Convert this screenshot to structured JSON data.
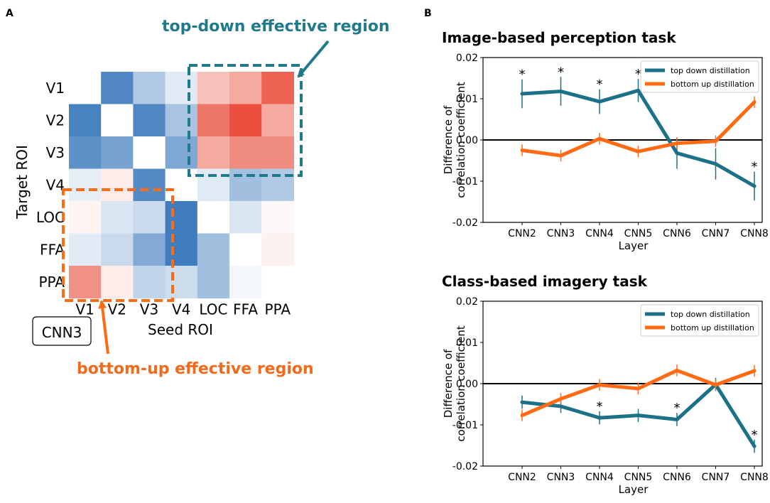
{
  "panel_labels": {
    "a": "A",
    "b": "B"
  },
  "colors": {
    "teal": "#1f7a8c",
    "teal_line": "#1b7187",
    "orange": "#ff6a13",
    "orange_text": "#f26a1b",
    "blue_strong": "#2f72b8",
    "red_strong": "#e8412c"
  },
  "chart_data": [
    {
      "type": "heatmap",
      "id": "matrix",
      "badge": "CNN3",
      "xlabel": "Seed ROI",
      "ylabel": "Target ROI",
      "rows": [
        "V1",
        "V2",
        "V3",
        "V4",
        "LOC",
        "FFA",
        "PPA"
      ],
      "cols": [
        "V1",
        "V2",
        "V3",
        "V4",
        "LOC",
        "FFA",
        "PPA"
      ],
      "values": [
        [
          0,
          -0.85,
          -0.38,
          -0.15,
          0.32,
          0.45,
          0.82
        ],
        [
          -0.88,
          0,
          -0.85,
          -0.42,
          0.72,
          0.92,
          0.45
        ],
        [
          -0.78,
          -0.65,
          0,
          -0.62,
          0.45,
          0.6,
          0.6
        ],
        [
          -0.12,
          0.1,
          -0.82,
          0,
          -0.15,
          -0.45,
          -0.38
        ],
        [
          0.06,
          -0.18,
          -0.26,
          -0.92,
          0,
          -0.18,
          0.04
        ],
        [
          -0.14,
          -0.26,
          -0.6,
          -0.92,
          -0.45,
          0,
          0.07
        ],
        [
          0.58,
          0.1,
          -0.3,
          -0.24,
          -0.45,
          -0.06,
          0
        ]
      ],
      "annotations": {
        "top_down": "top-down effective region",
        "bottom_up": "bottom-up effective region"
      }
    },
    {
      "type": "line",
      "id": "perception",
      "title": "Image-based perception task",
      "xlabel": "Layer",
      "ylabel_lines": [
        "Difference of",
        "correlation coefficient"
      ],
      "ylim": [
        -0.02,
        0.02
      ],
      "yticks": [
        "0.02",
        "0.01",
        "0.00",
        "-0.01",
        "-0.02"
      ],
      "categories": [
        "CNN2",
        "CNN3",
        "CNN4",
        "CNN5",
        "CNN6",
        "CNN7",
        "CNN8"
      ],
      "series": [
        {
          "name": "top down distillation",
          "color": "#1b7187",
          "values": [
            0.0112,
            0.0118,
            0.0093,
            0.012,
            -0.0032,
            -0.0058,
            -0.0112
          ],
          "errors": [
            0.0035,
            0.0035,
            0.003,
            0.0028,
            0.0038,
            0.0038,
            0.0035
          ],
          "stars": [
            true,
            true,
            true,
            true,
            false,
            false,
            true
          ]
        },
        {
          "name": "bottom up distillation",
          "color": "#ff6a13",
          "values": [
            -0.0025,
            -0.0038,
            0.0003,
            -0.0028,
            -0.0008,
            -0.0003,
            0.0092
          ],
          "errors": [
            0.0014,
            0.0014,
            0.0014,
            0.0014,
            0.0014,
            0.0014,
            0.0014
          ],
          "stars": [
            false,
            false,
            false,
            false,
            false,
            false,
            true
          ]
        }
      ]
    },
    {
      "type": "line",
      "id": "imagery",
      "title": "Class-based imagery task",
      "xlabel": "Layer",
      "ylabel_lines": [
        "Difference of",
        "correlation coefficient"
      ],
      "ylim": [
        -0.02,
        0.02
      ],
      "yticks": [
        "0.02",
        "0.01",
        "0.00",
        "-0.01",
        "-0.02"
      ],
      "categories": [
        "CNN2",
        "CNN3",
        "CNN4",
        "CNN5",
        "CNN6",
        "CNN7",
        "CNN8"
      ],
      "series": [
        {
          "name": "top down distillation",
          "color": "#1b7187",
          "values": [
            -0.0045,
            -0.0055,
            -0.0083,
            -0.0077,
            -0.0087,
            -0.0002,
            -0.0152
          ],
          "errors": [
            0.0016,
            0.0016,
            0.0016,
            0.0016,
            0.0016,
            0.0016,
            0.0016
          ],
          "stars": [
            false,
            false,
            true,
            false,
            true,
            false,
            true
          ]
        },
        {
          "name": "bottom up distillation",
          "color": "#ff6a13",
          "values": [
            -0.0077,
            -0.0037,
            -0.0003,
            -0.0012,
            0.0032,
            -0.0003,
            0.0031
          ],
          "errors": [
            0.0014,
            0.0014,
            0.0014,
            0.0014,
            0.0014,
            0.0014,
            0.0014
          ],
          "stars": [
            false,
            false,
            false,
            false,
            false,
            false,
            false
          ]
        }
      ]
    }
  ]
}
